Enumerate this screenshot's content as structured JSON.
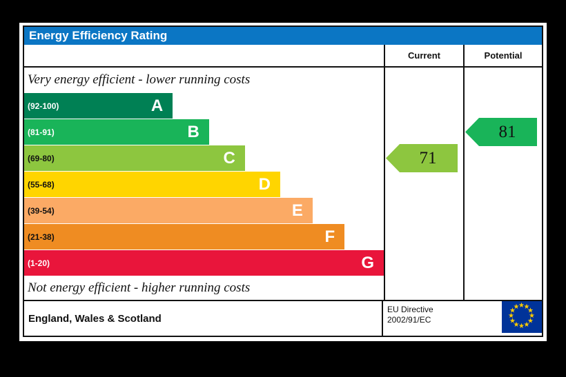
{
  "title": "Energy Efficiency Rating",
  "colors": {
    "title_bar": "#0b76c4",
    "border": "#111111",
    "flag_blue": "#003399",
    "flag_star": "#ffcc00"
  },
  "columns": {
    "current": "Current",
    "potential": "Potential"
  },
  "top_note": "Very energy efficient - lower running costs",
  "bottom_note": "Not energy efficient - higher running costs",
  "bands": [
    {
      "letter": "A",
      "range": "(92-100)",
      "color": "#008054",
      "text_color": "#ffffff",
      "width_pct": 41.3
    },
    {
      "letter": "B",
      "range": "(81-91)",
      "color": "#19b459",
      "text_color": "#ffffff",
      "width_pct": 51.4
    },
    {
      "letter": "C",
      "range": "(69-80)",
      "color": "#8dc63f",
      "text_color": "#111111",
      "width_pct": 61.4
    },
    {
      "letter": "D",
      "range": "(55-68)",
      "color": "#ffd500",
      "text_color": "#111111",
      "width_pct": 71.2
    },
    {
      "letter": "E",
      "range": "(39-54)",
      "color": "#fbaa65",
      "text_color": "#111111",
      "width_pct": 80.2
    },
    {
      "letter": "F",
      "range": "(21-38)",
      "color": "#ef8c22",
      "text_color": "#111111",
      "width_pct": 89.1
    },
    {
      "letter": "G",
      "range": "(1-20)",
      "color": "#e9153b",
      "text_color": "#ffffff",
      "width_pct": 100
    }
  ],
  "current": {
    "value": "71",
    "band": "C",
    "color": "#8dc63f",
    "row_index": 2
  },
  "potential": {
    "value": "81",
    "band": "B",
    "color": "#19b459",
    "row_index": 1
  },
  "footer": {
    "region": "England, Wales & Scotland",
    "directive_line1": "EU Directive",
    "directive_line2": "2002/91/EC"
  },
  "chart_data": {
    "type": "bar",
    "title": "Energy Efficiency Rating",
    "categories": [
      "A (92-100)",
      "B (81-91)",
      "C (69-80)",
      "D (55-68)",
      "E (39-54)",
      "F (21-38)",
      "G (1-20)"
    ],
    "band_colors": [
      "#008054",
      "#19b459",
      "#8dc63f",
      "#ffd500",
      "#fbaa65",
      "#ef8c22",
      "#e9153b"
    ],
    "series": [
      {
        "name": "Current",
        "value": 71,
        "band": "C"
      },
      {
        "name": "Potential",
        "value": 81,
        "band": "B"
      }
    ],
    "value_range": [
      1,
      100
    ],
    "annotations": [
      "Very energy efficient - lower running costs",
      "Not energy efficient - higher running costs",
      "England, Wales & Scotland",
      "EU Directive 2002/91/EC"
    ],
    "legend_position": "none",
    "grid": false
  }
}
